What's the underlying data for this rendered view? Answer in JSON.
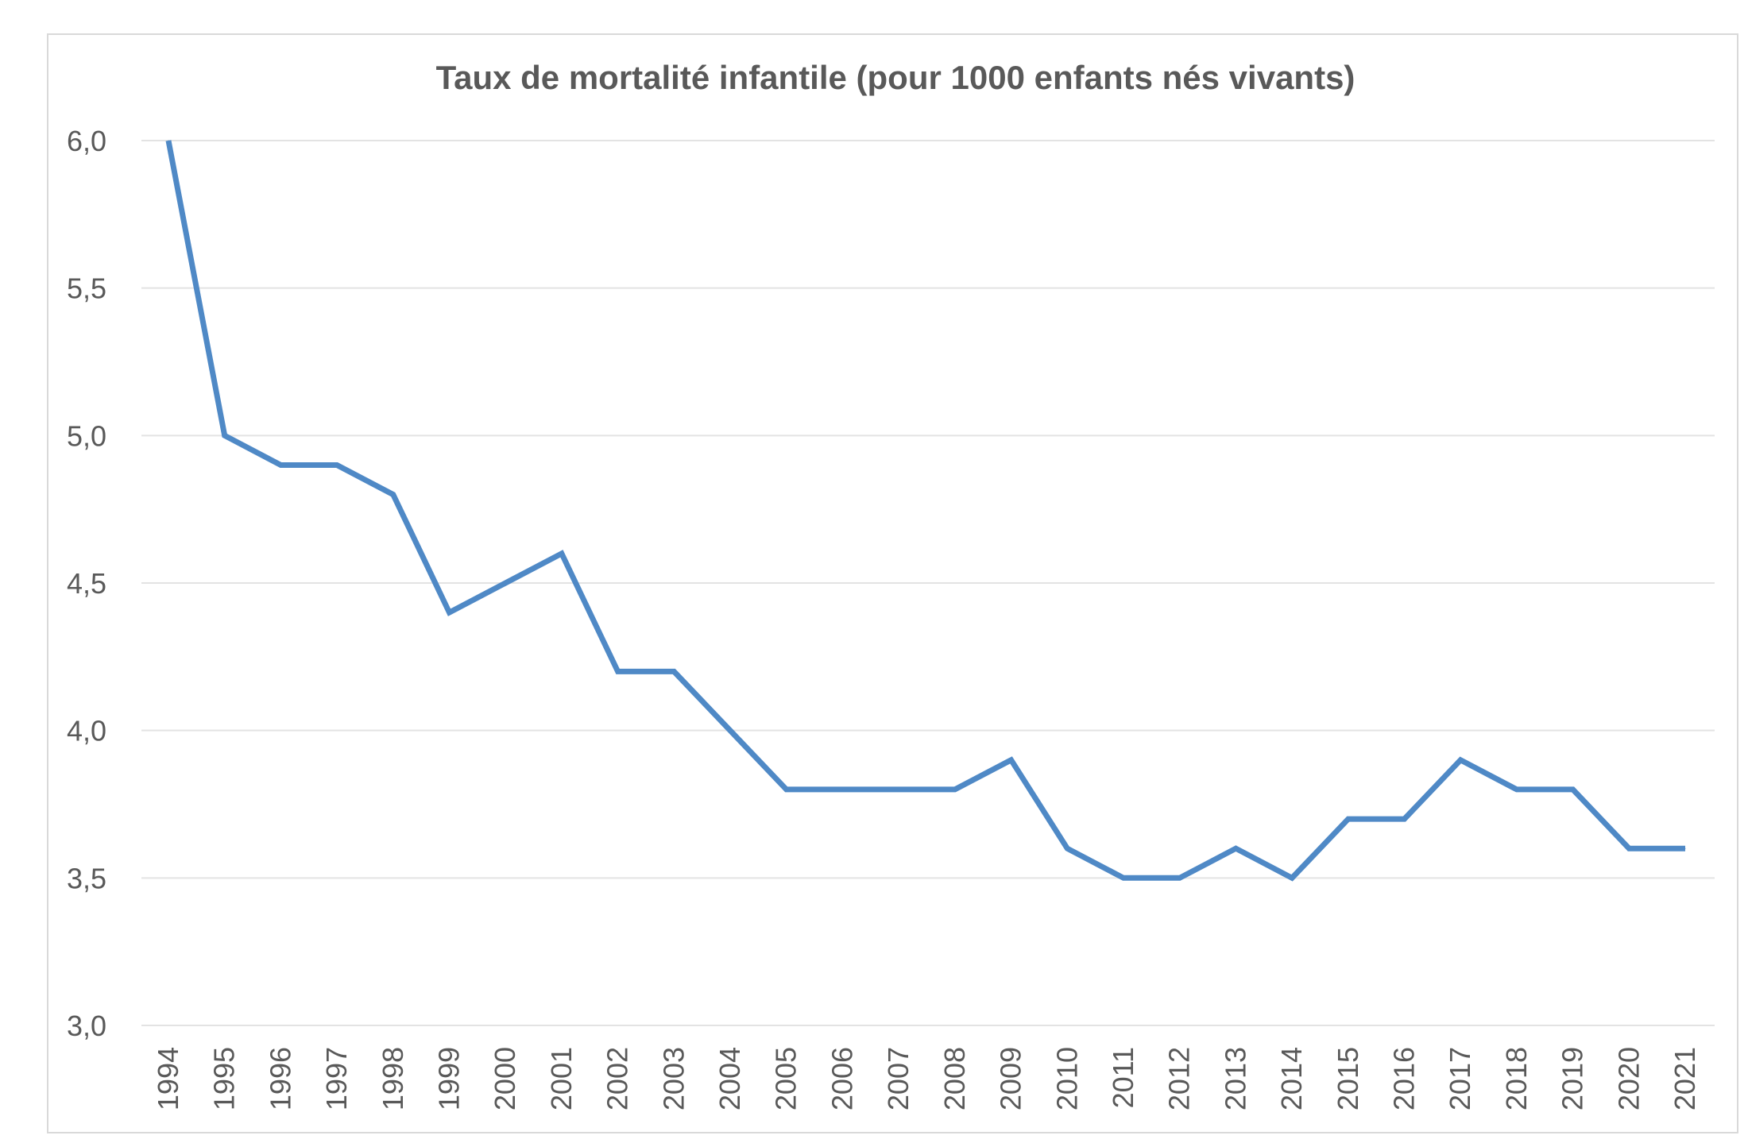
{
  "chart_data": {
    "type": "line",
    "title": "Taux de mortalité infantile (pour 1000 enfants nés vivants)",
    "xlabel": "",
    "ylabel": "",
    "x": [
      "1994",
      "1995",
      "1996",
      "1997",
      "1998",
      "1999",
      "2000",
      "2001",
      "2002",
      "2003",
      "2004",
      "2005",
      "2006",
      "2007",
      "2008",
      "2009",
      "2010",
      "2011",
      "2012",
      "2013",
      "2014",
      "2015",
      "2016",
      "2017",
      "2018",
      "2019",
      "2020",
      "2021"
    ],
    "series": [
      {
        "values": [
          6.0,
          5.0,
          4.9,
          4.9,
          4.8,
          4.4,
          4.5,
          4.6,
          4.2,
          4.2,
          4.0,
          3.8,
          3.8,
          3.8,
          3.8,
          3.9,
          3.6,
          3.5,
          3.5,
          3.6,
          3.5,
          3.7,
          3.7,
          3.9,
          3.8,
          3.8,
          3.6,
          3.6
        ],
        "color": "#4f89c6"
      }
    ],
    "ylim": [
      3.0,
      6.0
    ],
    "yticks": [
      3.0,
      3.5,
      4.0,
      4.5,
      5.0,
      5.5,
      6.0
    ],
    "ytick_labels": [
      "3,0",
      "3,5",
      "4,0",
      "4,5",
      "5,0",
      "5,5",
      "6,0"
    ],
    "grid": "horizontal",
    "legend": "none",
    "colors": {
      "line": "#4f89c6",
      "grid": "#e3e3e3",
      "text": "#595959",
      "frame": "#d9d9d9"
    }
  }
}
